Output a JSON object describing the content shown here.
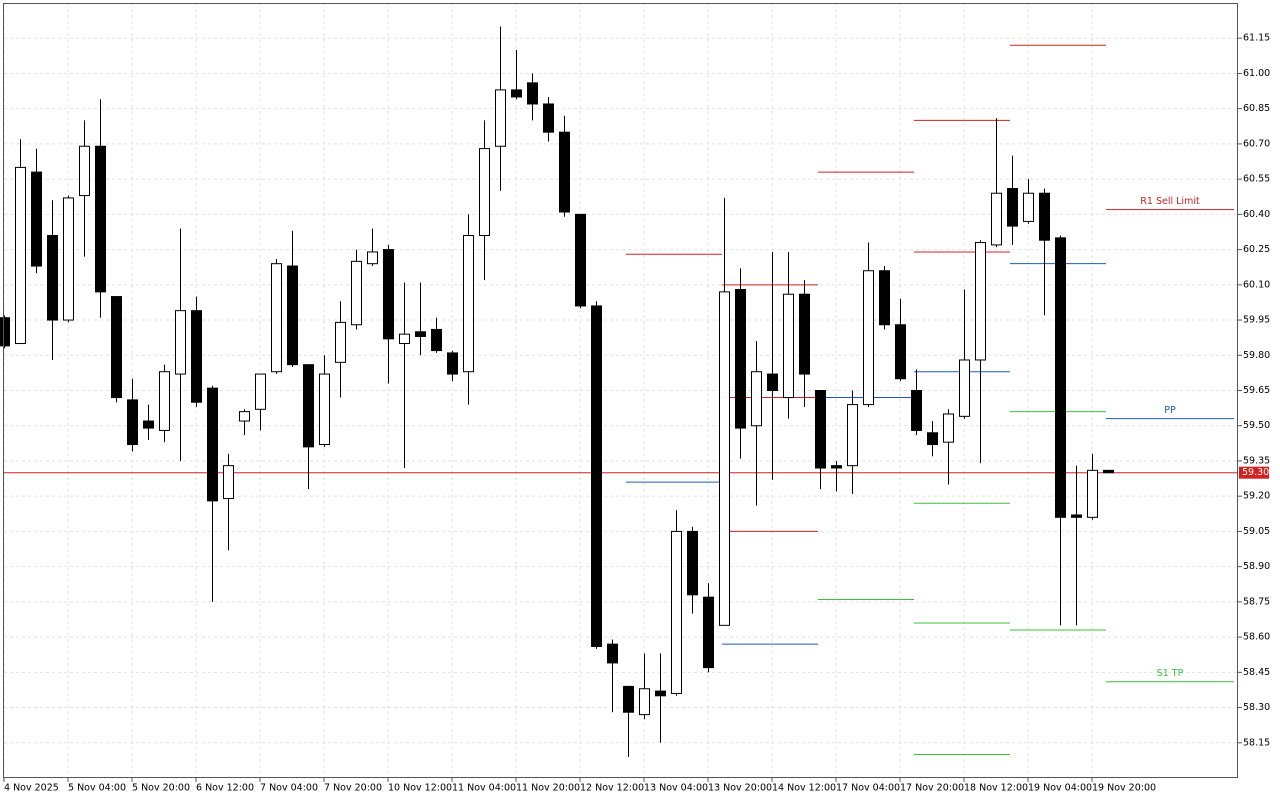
{
  "chart_data": {
    "type": "candlestick",
    "categories": [
      "4 Nov 2025",
      null,
      null,
      null,
      "5 Nov 04:00",
      null,
      null,
      null,
      "5 Nov 20:00",
      null,
      null,
      null,
      "6 Nov 12:00",
      null,
      null,
      null,
      "7 Nov 04:00",
      null,
      null,
      null,
      "7 Nov 20:00",
      null,
      null,
      null,
      "10 Nov 12:00",
      null,
      null,
      null,
      "11 Nov 04:00",
      null,
      null,
      null,
      "11 Nov 20:00",
      null,
      null,
      null,
      "12 Nov 12:00",
      null,
      null,
      null,
      "13 Nov 04:00",
      null,
      null,
      null,
      "13 Nov 20:00",
      null,
      null,
      null,
      "14 Nov 12:00",
      null,
      null,
      null,
      "17 Nov 04:00",
      null,
      null,
      null,
      "17 Nov 20:00",
      null,
      null,
      null,
      "18 Nov 12:00",
      null,
      null,
      null,
      "19 Nov 04:00",
      null,
      null,
      null,
      "19 Nov 20:00",
      null
    ],
    "open": [
      59.96,
      59.85,
      60.58,
      60.31,
      59.95,
      60.48,
      60.69,
      60.05,
      59.61,
      59.52,
      59.48,
      59.72,
      59.99,
      59.66,
      59.19,
      59.52,
      59.57,
      59.73,
      60.18,
      59.76,
      59.42,
      59.77,
      59.93,
      60.19,
      60.25,
      59.85,
      59.9,
      59.91,
      59.81,
      59.73,
      60.31,
      60.69,
      60.93,
      60.96,
      60.87,
      60.75,
      60.4,
      60.01,
      58.57,
      58.39,
      58.27,
      58.37,
      58.36,
      59.05,
      58.77,
      58.65,
      60.08,
      59.5,
      59.72,
      59.62,
      60.06,
      59.65,
      59.33,
      59.33,
      59.59,
      60.16,
      59.93,
      59.65,
      59.47,
      59.43,
      59.54,
      59.78,
      60.27,
      60.51,
      60.37,
      60.49,
      60.3,
      59.12,
      59.11,
      59.31
    ],
    "high": [
      59.97,
      60.72,
      60.68,
      60.46,
      60.48,
      60.8,
      60.89,
      60.05,
      59.7,
      59.59,
      59.76,
      60.34,
      60.05,
      59.67,
      59.38,
      59.57,
      59.72,
      60.21,
      60.33,
      59.76,
      59.8,
      60.03,
      60.25,
      60.34,
      60.27,
      60.11,
      60.11,
      59.96,
      59.82,
      60.4,
      60.8,
      61.2,
      61.1,
      61.0,
      60.9,
      60.82,
      60.4,
      60.03,
      58.59,
      58.39,
      58.53,
      58.53,
      59.14,
      59.07,
      58.83,
      60.47,
      60.17,
      59.86,
      60.24,
      60.24,
      60.12,
      59.65,
      59.35,
      59.65,
      60.28,
      60.18,
      60.04,
      59.74,
      59.52,
      59.57,
      60.08,
      60.29,
      60.81,
      60.65,
      60.55,
      60.51,
      60.31,
      59.33,
      59.38,
      59.31
    ],
    "low": [
      59.83,
      59.85,
      60.15,
      59.78,
      59.94,
      60.22,
      59.96,
      59.6,
      59.39,
      59.44,
      59.43,
      59.35,
      59.58,
      58.75,
      58.97,
      59.46,
      59.48,
      59.72,
      59.75,
      59.23,
      59.41,
      59.62,
      59.91,
      60.18,
      59.68,
      59.32,
      59.8,
      59.81,
      59.69,
      59.59,
      60.12,
      60.5,
      60.89,
      60.8,
      60.71,
      60.39,
      60.0,
      58.55,
      58.28,
      58.09,
      58.25,
      58.15,
      58.35,
      58.7,
      58.45,
      58.65,
      59.36,
      59.16,
      59.27,
      59.53,
      59.58,
      59.23,
      59.22,
      59.21,
      59.58,
      59.91,
      59.69,
      59.46,
      59.37,
      59.25,
      59.53,
      59.34,
      60.26,
      60.27,
      60.36,
      59.97,
      58.65,
      58.65,
      59.1,
      59.3
    ],
    "close": [
      59.84,
      60.6,
      60.18,
      59.95,
      60.47,
      60.69,
      60.07,
      59.62,
      59.42,
      59.49,
      59.73,
      59.99,
      59.6,
      59.18,
      59.33,
      59.56,
      59.72,
      60.19,
      59.76,
      59.41,
      59.72,
      59.94,
      60.2,
      60.24,
      59.87,
      59.89,
      59.88,
      59.82,
      59.72,
      60.31,
      60.68,
      60.93,
      60.9,
      60.87,
      60.75,
      60.41,
      60.01,
      58.56,
      58.49,
      58.28,
      58.38,
      58.35,
      59.05,
      58.78,
      58.47,
      60.07,
      59.49,
      59.73,
      59.65,
      60.06,
      59.72,
      59.32,
      59.32,
      59.59,
      60.16,
      59.93,
      59.7,
      59.48,
      59.42,
      59.55,
      59.78,
      60.28,
      60.49,
      60.35,
      60.49,
      60.29,
      59.11,
      59.11,
      59.31,
      59.3
    ],
    "up_color": "#ffffff",
    "down_color": "#000000",
    "ylim": [
      58.0,
      61.3
    ],
    "yticks": [
      58.15,
      {
        "value": 58.3,
        "label": "58.30"
      },
      58.45,
      {
        "value": 58.6,
        "label": "58.60"
      },
      58.75,
      {
        "value": 58.9,
        "label": "58.90"
      },
      59.05,
      {
        "value": 59.2,
        "label": "59.20"
      },
      59.35,
      {
        "value": 59.5,
        "label": "59.50"
      },
      59.65,
      {
        "value": 59.8,
        "label": "59.80"
      },
      59.95,
      {
        "value": 60.1,
        "label": "60.10"
      },
      60.25,
      {
        "value": 60.4,
        "label": "60.40"
      },
      60.55,
      {
        "value": 60.7,
        "label": "60.70"
      },
      60.85,
      {
        "value": 61,
        "label": "61.00"
      },
      61.15
    ],
    "grid": true,
    "last_price": {
      "value": 59.3,
      "label": "59.30",
      "color": "#d42020"
    },
    "levels": [
      {
        "value": 60.23,
        "color": "#d42020",
        "from": 38.875,
        "to": 44.875
      },
      {
        "value": 59.26,
        "color": "#1f5bb5",
        "from": 38.875,
        "to": 44.875
      },
      {
        "value": 60.1,
        "color": "#d42020",
        "from": 44.875,
        "to": 50.875
      },
      {
        "value": 59.62,
        "color": "#d42020",
        "from": 44.875,
        "to": 50.875
      },
      {
        "value": 59.05,
        "color": "#d42020",
        "from": 44.875,
        "to": 50.875
      },
      {
        "value": 58.57,
        "color": "#1f5bb5",
        "from": 44.875,
        "to": 50.875
      },
      {
        "value": 60.58,
        "color": "#d42020",
        "from": 50.875,
        "to": 56.875
      },
      {
        "value": 59.62,
        "color": "#1f5bb5",
        "from": 50.875,
        "to": 56.875
      },
      {
        "value": 58.76,
        "color": "#3cc13c",
        "from": 50.875,
        "to": 56.875
      },
      {
        "value": 60.8,
        "color": "#d42020",
        "from": 56.875,
        "to": 62.875
      },
      {
        "value": 60.24,
        "color": "#d42020",
        "from": 56.875,
        "to": 62.875
      },
      {
        "value": 59.73,
        "color": "#1f5bb5",
        "from": 56.875,
        "to": 62.875
      },
      {
        "value": 59.17,
        "color": "#3cc13c",
        "from": 56.875,
        "to": 62.875
      },
      {
        "value": 58.66,
        "color": "#3cc13c",
        "from": 56.875,
        "to": 62.875
      },
      {
        "value": 58.1,
        "color": "#3cc13c",
        "from": 56.875,
        "to": 62.875
      },
      {
        "value": 61.12,
        "color": "#d42020",
        "from": 62.875,
        "to": 68.875
      },
      {
        "value": 60.19,
        "color": "#1f5bb5",
        "from": 62.875,
        "to": 68.875
      },
      {
        "value": 59.56,
        "color": "#3cc13c",
        "from": 62.875,
        "to": 68.875
      },
      {
        "value": 58.63,
        "color": "#3cc13c",
        "from": 62.875,
        "to": 68.875
      },
      {
        "value": 60.42,
        "color": "#d42020",
        "from": 68.875,
        "to": 76.875,
        "label": "R1 Sell Limit"
      },
      {
        "value": 59.53,
        "color": "#1f5bb5",
        "from": 68.875,
        "to": 76.875,
        "label": "PP"
      },
      {
        "value": 58.41,
        "color": "#3cc13c",
        "from": 68.875,
        "to": 76.875,
        "label": "S1 TP"
      }
    ]
  }
}
